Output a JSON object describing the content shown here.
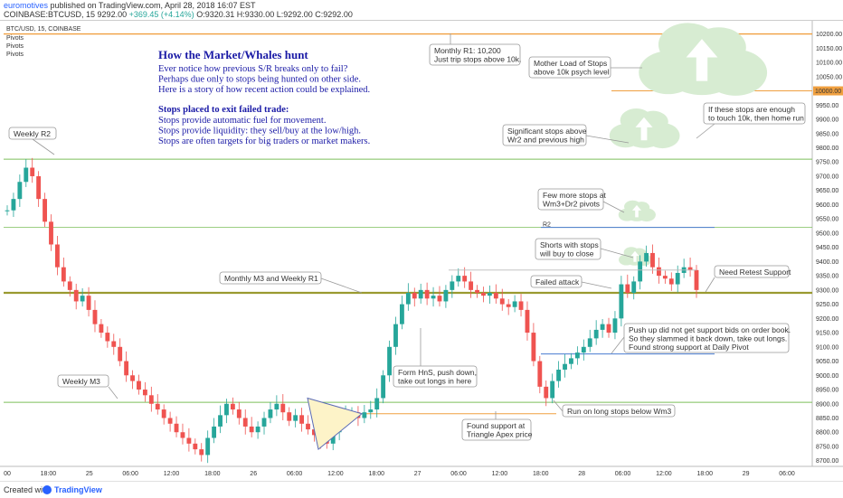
{
  "header": {
    "author": "euromotives",
    "published": "published on TradingView.com, April 28, 2018 16:07 EST",
    "symbol": "COINBASE:BTCUSD, 15",
    "price": "9292.00",
    "change": "+369.45 (+4.14%)",
    "ohlc": "O:9320.31 H:9330.00 L:9292.00 C:9292.00"
  },
  "footer": {
    "created_with": "Created with",
    "brand": "TradingView"
  },
  "chart_data": {
    "type": "candlestick",
    "title": "BTC/USD, 15, COINBASE",
    "legend": [
      "Pivots",
      "Pivots",
      "Pivots"
    ],
    "ylim": [
      8680,
      10240
    ],
    "y_ticks": [
      8700,
      8750,
      8800,
      8850,
      8900,
      8950,
      9000,
      9050,
      9100,
      9150,
      9200,
      9250,
      9300,
      9350,
      9400,
      9450,
      9500,
      9550,
      9600,
      9650,
      9700,
      9750,
      9800,
      9850,
      9900,
      9950,
      10000,
      10050,
      10100,
      10150,
      10200
    ],
    "x_ticks": [
      "00",
      "18:00",
      "25",
      "06:00",
      "12:00",
      "18:00",
      "26",
      "06:00",
      "12:00",
      "18:00",
      "27",
      "06:00",
      "12:00",
      "18:00",
      "28",
      "06:00",
      "12:00",
      "18:00",
      "29",
      "06:00"
    ],
    "price_label": "10000.00",
    "close_series": [
      9580,
      9620,
      9680,
      9730,
      9700,
      9620,
      9540,
      9460,
      9380,
      9330,
      9300,
      9260,
      9280,
      9230,
      9180,
      9150,
      9120,
      9100,
      9050,
      9000,
      8980,
      8950,
      8930,
      8900,
      8880,
      8850,
      8830,
      8800,
      8780,
      8760,
      8740,
      8720,
      8780,
      8820,
      8860,
      8900,
      8880,
      8850,
      8820,
      8800,
      8820,
      8850,
      8880,
      8900,
      8870,
      8840,
      8860,
      8830,
      8810,
      8790,
      8770,
      8760,
      8800,
      8840,
      8860,
      8870,
      8850,
      8870,
      8880,
      8920,
      9000,
      9100,
      9180,
      9250,
      9290,
      9270,
      9300,
      9270,
      9280,
      9260,
      9300,
      9330,
      9350,
      9330,
      9300,
      9290,
      9280,
      9290,
      9270,
      9250,
      9240,
      9260,
      9230,
      9150,
      9050,
      8960,
      8920,
      8980,
      9020,
      9040,
      9060,
      9080,
      9100,
      9130,
      9160,
      9180,
      9150,
      9200,
      9320,
      9290,
      9330,
      9400,
      9430,
      9380,
      9350,
      9340,
      9320,
      9360,
      9380,
      9370,
      9300
    ],
    "levels": [
      {
        "name": "Monthly R1",
        "value": 10200,
        "color": "#f0a040"
      },
      {
        "name": "10k",
        "value": 10000,
        "color": "#f0a040"
      },
      {
        "name": "Weekly R2",
        "value": 9760,
        "color": "#7cbf5a"
      },
      {
        "name": "R2",
        "value": 9520,
        "color": "#7cbf5a"
      },
      {
        "name": "Monthly M3 and Weekly R1",
        "value": 9290,
        "color": "#9a9a30"
      },
      {
        "name": "Daily Pivot",
        "value": 9075,
        "color": "#4a7bd0"
      },
      {
        "name": "Weekly M3",
        "value": 8905,
        "color": "#7cbf5a"
      },
      {
        "name": "Triangle Apex",
        "value": 8865,
        "color": "#f0a040"
      }
    ],
    "annotations": [
      "Monthly R1: 10,200\nJust trip stops above 10k.",
      "Mother Load of Stops\nabove 10k psych level",
      "If these stops are enough\nto touch 10k, then home run",
      "Significant stops above\nWr2 and previous high",
      "Weekly R2",
      "Few more stops at\nWm3+Dr2 pivots",
      "Shorts with stops\nwill buy to close",
      "Monthly M3 and Weekly R1",
      "Failed attack",
      "Need Retest Support",
      "Push up did not get support bids on order book.\nSo they slammed it back down, take out longs.\nFound strong support at Daily Pivot",
      "Weekly M3",
      "Form HnS, push down,\ntake out longs in here",
      "Run on long stops below Wm3",
      "Found support at\nTriangle Apex price",
      "R2"
    ]
  },
  "notes": {
    "title": "How the Market/Whales hunt",
    "lines1": [
      "Ever notice how previous S/R breaks only to fail?",
      "Perhaps due only to stops being hunted on other side.",
      "Here is a story of how recent action could be explained."
    ],
    "subtitle": "Stops placed to exit failed trade:",
    "lines2": [
      "Stops provide automatic fuel for movement.",
      "Stops provide liquidity: they sell/buy at the low/high.",
      "Stops are often targets for big traders or market makers."
    ]
  }
}
